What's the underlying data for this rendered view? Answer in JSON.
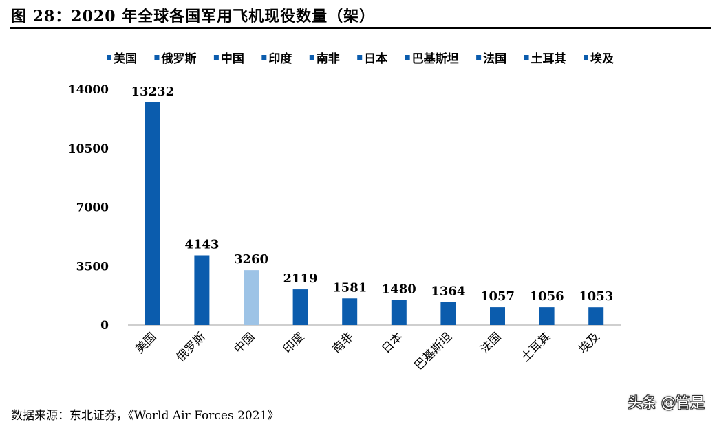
{
  "figure": {
    "title": "图 28：2020 年全球各国军用飞机现役数量（架）",
    "source": "数据来源：东北证券，《World Air Forces 2021》",
    "watermark": "头条 @管是"
  },
  "colors": {
    "primary": "#0B5CAD",
    "highlight": "#9DC3E6",
    "axis": "#BFBFBF"
  },
  "chart_data": {
    "type": "bar",
    "categories": [
      "美国",
      "俄罗斯",
      "中国",
      "印度",
      "南非",
      "日本",
      "巴基斯坦",
      "法国",
      "土耳其",
      "埃及"
    ],
    "values": [
      13232,
      4143,
      3260,
      2119,
      1581,
      1480,
      1364,
      1057,
      1056,
      1053
    ],
    "highlight_index": 2,
    "ylim": [
      0,
      14000
    ],
    "yticks": [
      0,
      3500,
      7000,
      10500,
      14000
    ],
    "legend": [
      "美国",
      "俄罗斯",
      "中国",
      "印度",
      "南非",
      "日本",
      "巴基斯坦",
      "法国",
      "土耳其",
      "埃及"
    ],
    "legend_position": "top",
    "grid": false
  }
}
